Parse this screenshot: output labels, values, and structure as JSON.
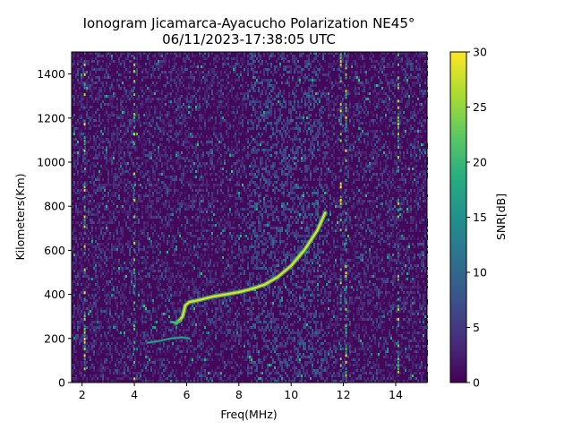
{
  "chart_data": {
    "type": "heatmap",
    "title_line1": "Ionogram Jicamarca-Ayacucho Polarization NE45°",
    "title_line2": "06/11/2023-17:38:05 UTC",
    "xlabel": "Freq(MHz)",
    "ylabel": "Kilometers(Km)",
    "colorbar_label": "SNR[dB]",
    "xlim": [
      1.6,
      15.2
    ],
    "ylim": [
      0,
      1500
    ],
    "clim": [
      0,
      30
    ],
    "colormap": "viridis",
    "x_ticks": [
      2,
      4,
      6,
      8,
      10,
      12,
      14
    ],
    "x_tick_labels": [
      "2",
      "4",
      "6",
      "8",
      "10",
      "12",
      "14"
    ],
    "y_ticks": [
      0,
      200,
      400,
      600,
      800,
      1000,
      1200,
      1400
    ],
    "y_tick_labels": [
      "0",
      "200",
      "400",
      "600",
      "800",
      "1000",
      "1200",
      "1400"
    ],
    "colorbar_ticks": [
      0,
      5,
      10,
      15,
      20,
      25,
      30
    ],
    "colorbar_tick_labels": [
      "0",
      "5",
      "10",
      "15",
      "20",
      "25",
      "30"
    ],
    "traces": [
      {
        "points": [
          [
            5.6,
            270
          ],
          [
            5.75,
            285
          ],
          [
            5.85,
            300
          ],
          [
            5.95,
            350
          ],
          [
            6.1,
            365
          ],
          [
            6.5,
            375
          ],
          [
            7.0,
            390
          ],
          [
            7.5,
            400
          ],
          [
            8.0,
            410
          ],
          [
            8.5,
            425
          ],
          [
            9.0,
            445
          ],
          [
            9.5,
            480
          ],
          [
            10.0,
            530
          ],
          [
            10.5,
            600
          ],
          [
            11.0,
            690
          ],
          [
            11.3,
            770
          ]
        ],
        "snr": 28
      },
      {
        "points": [
          [
            4.5,
            180
          ],
          [
            5.0,
            190
          ],
          [
            5.4,
            200
          ],
          [
            5.8,
            205
          ],
          [
            6.1,
            200
          ]
        ],
        "snr": 18
      },
      {
        "points": [
          [
            5.4,
            275
          ],
          [
            5.6,
            272
          ],
          [
            5.8,
            280
          ]
        ],
        "snr": 22
      }
    ],
    "interference_lines_mhz": [
      2.1,
      4.0,
      11.9,
      12.1,
      14.1
    ]
  }
}
